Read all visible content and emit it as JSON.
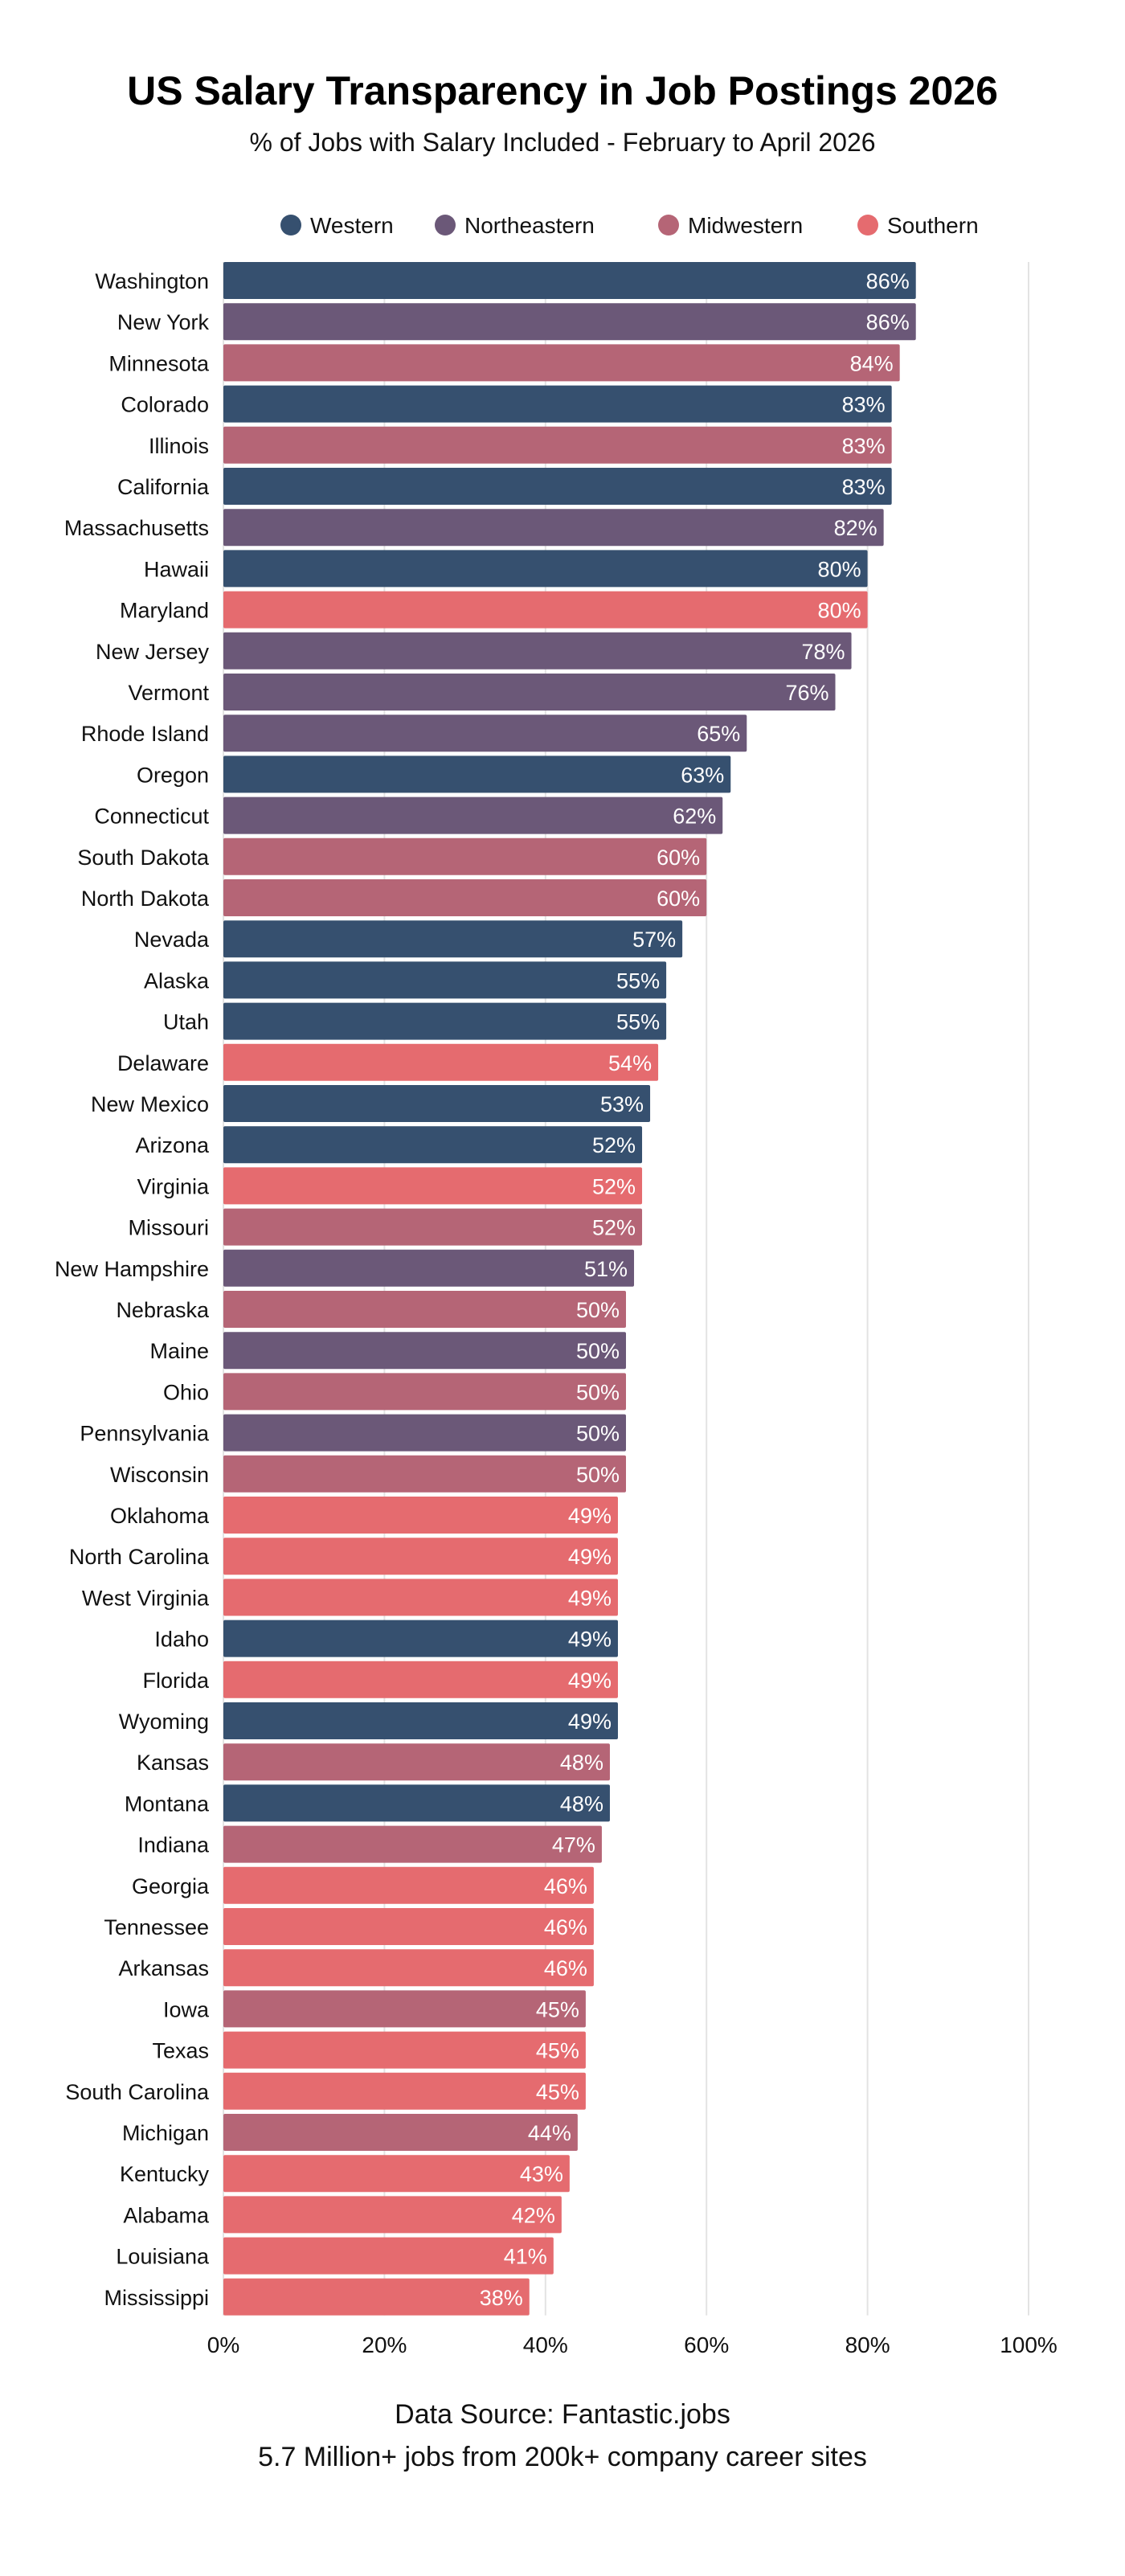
{
  "chart_data": {
    "type": "bar",
    "orientation": "horizontal",
    "title": "US Salary Transparency in Job Postings 2026",
    "subtitle": "% of Jobs with Salary Included - February to April 2026",
    "xlim": [
      0,
      100
    ],
    "x_ticks": [
      "0%",
      "20%",
      "40%",
      "60%",
      "80%",
      "100%"
    ],
    "grid": "vertical",
    "legend_position": "top",
    "legend": [
      {
        "name": "Western",
        "color": "#36506f"
      },
      {
        "name": "Northeastern",
        "color": "#6b5878"
      },
      {
        "name": "Midwestern",
        "color": "#b56576"
      },
      {
        "name": "Southern",
        "color": "#e56b6f"
      }
    ],
    "bars": [
      {
        "state": "Washington",
        "value": 86,
        "region": "Western"
      },
      {
        "state": "New York",
        "value": 86,
        "region": "Northeastern"
      },
      {
        "state": "Minnesota",
        "value": 84,
        "region": "Midwestern"
      },
      {
        "state": "Colorado",
        "value": 83,
        "region": "Western"
      },
      {
        "state": "Illinois",
        "value": 83,
        "region": "Midwestern"
      },
      {
        "state": "California",
        "value": 83,
        "region": "Western"
      },
      {
        "state": "Massachusetts",
        "value": 82,
        "region": "Northeastern"
      },
      {
        "state": "Hawaii",
        "value": 80,
        "region": "Western"
      },
      {
        "state": "Maryland",
        "value": 80,
        "region": "Southern"
      },
      {
        "state": "New Jersey",
        "value": 78,
        "region": "Northeastern"
      },
      {
        "state": "Vermont",
        "value": 76,
        "region": "Northeastern"
      },
      {
        "state": "Rhode Island",
        "value": 65,
        "region": "Northeastern"
      },
      {
        "state": "Oregon",
        "value": 63,
        "region": "Western"
      },
      {
        "state": "Connecticut",
        "value": 62,
        "region": "Northeastern"
      },
      {
        "state": "South Dakota",
        "value": 60,
        "region": "Midwestern"
      },
      {
        "state": "North Dakota",
        "value": 60,
        "region": "Midwestern"
      },
      {
        "state": "Nevada",
        "value": 57,
        "region": "Western"
      },
      {
        "state": "Alaska",
        "value": 55,
        "region": "Western"
      },
      {
        "state": "Utah",
        "value": 55,
        "region": "Western"
      },
      {
        "state": "Delaware",
        "value": 54,
        "region": "Southern"
      },
      {
        "state": "New Mexico",
        "value": 53,
        "region": "Western"
      },
      {
        "state": "Arizona",
        "value": 52,
        "region": "Western"
      },
      {
        "state": "Virginia",
        "value": 52,
        "region": "Southern"
      },
      {
        "state": "Missouri",
        "value": 52,
        "region": "Midwestern"
      },
      {
        "state": "New Hampshire",
        "value": 51,
        "region": "Northeastern"
      },
      {
        "state": "Nebraska",
        "value": 50,
        "region": "Midwestern"
      },
      {
        "state": "Maine",
        "value": 50,
        "region": "Northeastern"
      },
      {
        "state": "Ohio",
        "value": 50,
        "region": "Midwestern"
      },
      {
        "state": "Pennsylvania",
        "value": 50,
        "region": "Northeastern"
      },
      {
        "state": "Wisconsin",
        "value": 50,
        "region": "Midwestern"
      },
      {
        "state": "Oklahoma",
        "value": 49,
        "region": "Southern"
      },
      {
        "state": "North Carolina",
        "value": 49,
        "region": "Southern"
      },
      {
        "state": "West Virginia",
        "value": 49,
        "region": "Southern"
      },
      {
        "state": "Idaho",
        "value": 49,
        "region": "Western"
      },
      {
        "state": "Florida",
        "value": 49,
        "region": "Southern"
      },
      {
        "state": "Wyoming",
        "value": 49,
        "region": "Western"
      },
      {
        "state": "Kansas",
        "value": 48,
        "region": "Midwestern"
      },
      {
        "state": "Montana",
        "value": 48,
        "region": "Western"
      },
      {
        "state": "Indiana",
        "value": 47,
        "region": "Midwestern"
      },
      {
        "state": "Georgia",
        "value": 46,
        "region": "Southern"
      },
      {
        "state": "Tennessee",
        "value": 46,
        "region": "Southern"
      },
      {
        "state": "Arkansas",
        "value": 46,
        "region": "Southern"
      },
      {
        "state": "Iowa",
        "value": 45,
        "region": "Midwestern"
      },
      {
        "state": "Texas",
        "value": 45,
        "region": "Southern"
      },
      {
        "state": "South Carolina",
        "value": 45,
        "region": "Southern"
      },
      {
        "state": "Michigan",
        "value": 44,
        "region": "Midwestern"
      },
      {
        "state": "Kentucky",
        "value": 43,
        "region": "Southern"
      },
      {
        "state": "Alabama",
        "value": 42,
        "region": "Southern"
      },
      {
        "state": "Louisiana",
        "value": 41,
        "region": "Southern"
      },
      {
        "state": "Mississippi",
        "value": 38,
        "region": "Southern"
      }
    ]
  },
  "footer": {
    "source": "Data Source: Fantastic.jobs",
    "note": "5.7 Million+ jobs from 200k+ company career sites"
  }
}
